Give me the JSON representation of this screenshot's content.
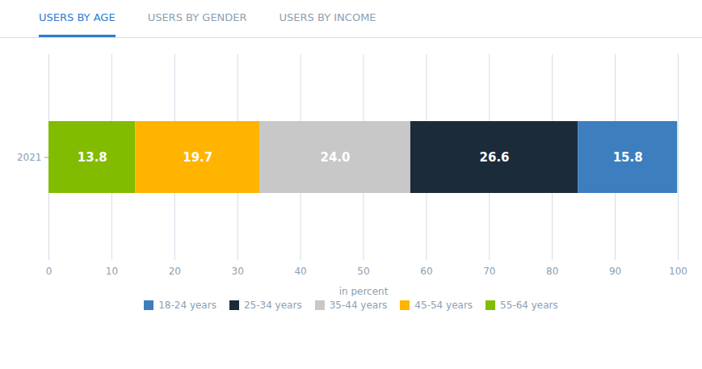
{
  "chart_data": {
    "type": "bar",
    "orientation": "horizontal",
    "stacked": true,
    "annotations": [
      "USERS BY AGE",
      "USERS BY GENDER",
      "USERS BY INCOME"
    ],
    "categories": [
      "2021"
    ],
    "series": [
      {
        "name": "55-64 years",
        "color": "#82bc00",
        "values": [
          13.8
        ],
        "value_labels": [
          "13.8"
        ]
      },
      {
        "name": "45-54 years",
        "color": "#ffb400",
        "values": [
          19.7
        ],
        "value_labels": [
          "19.7"
        ]
      },
      {
        "name": "35-44 years",
        "color": "#c8c8c8",
        "values": [
          24.0
        ],
        "value_labels": [
          "24.0"
        ]
      },
      {
        "name": "25-34 years",
        "color": "#1c2b3a",
        "values": [
          26.6
        ],
        "value_labels": [
          "26.6"
        ]
      },
      {
        "name": "18-24 years",
        "color": "#3d7ebf",
        "values": [
          15.8
        ],
        "value_labels": [
          "15.8"
        ]
      }
    ],
    "xlabel": "in percent",
    "xlim": [
      0,
      100
    ],
    "xticks": [
      0,
      10,
      20,
      30,
      40,
      50,
      60,
      70,
      80,
      90,
      100
    ],
    "grid": true,
    "data_labels": true,
    "legend": "bottom"
  }
}
